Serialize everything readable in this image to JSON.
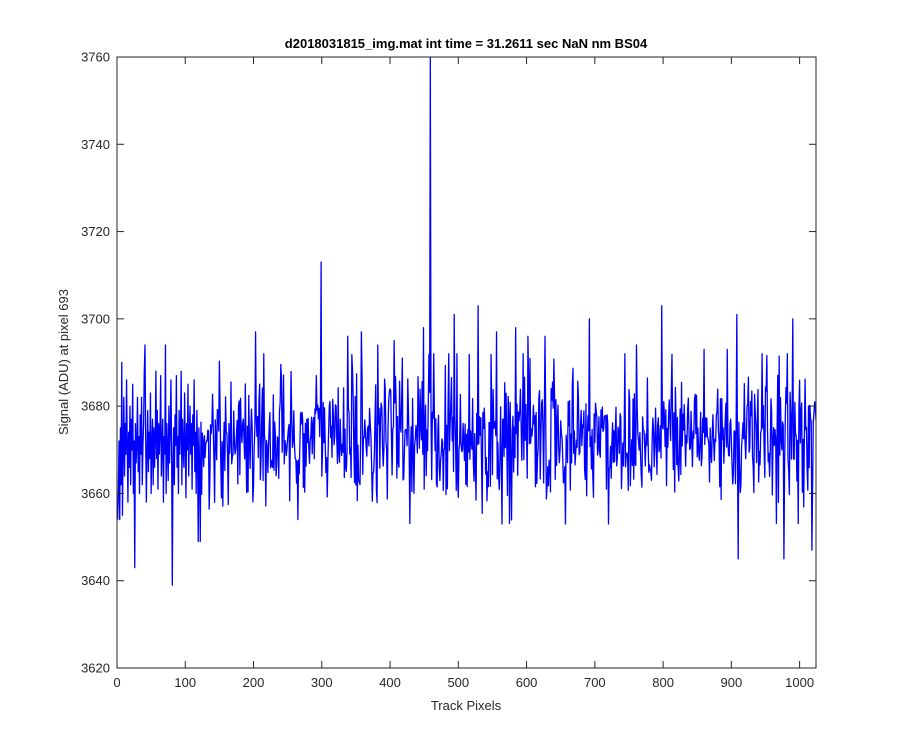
{
  "colors": {
    "series": "#0000ff",
    "axes": "#262626",
    "background": "#ffffff"
  },
  "chart_data": {
    "type": "line",
    "title": "d2018031815_img.mat int time = 31.2611 sec  NaN nm BS04",
    "xlabel": "Track Pixels",
    "ylabel": "Signal (ADU) at pixel 693",
    "xlim": [
      0,
      1024
    ],
    "ylim": [
      3620,
      3760
    ],
    "xticks": [
      0,
      100,
      200,
      300,
      400,
      500,
      600,
      700,
      800,
      900,
      1000
    ],
    "yticks": [
      3620,
      3640,
      3660,
      3680,
      3700,
      3720,
      3740,
      3760
    ],
    "grid": false,
    "legend": "none",
    "series": [
      {
        "color": "#0000ff",
        "noise": {
          "n_points": 1024,
          "x_start": 1,
          "x_step": 1,
          "mean": 3673,
          "std": 7.5
        },
        "values": [
          3668,
          3660,
          3672,
          3654,
          3675,
          3662,
          3690,
          3655,
          3670,
          3682,
          3664,
          3676,
          3669,
          3686,
          3671,
          3658,
          3674,
          3666,
          3680,
          3662,
          3677,
          3670,
          3685,
          3660,
          3672,
          3643,
          3676,
          3667,
          3671,
          3682,
          3665,
          3673,
          3660,
          3678,
          3669,
          3682,
          3662,
          3671,
          3676,
          3688,
          3667,
          3673,
          3658,
          3670,
          3679,
          3665,
          3674,
          3668,
          3683,
          3660,
          3671,
          3677,
          3662,
          3675,
          3666,
          3672,
          3684,
          3668,
          3679,
          3661,
          3676,
          3669,
          3674,
          3687,
          3664,
          3671,
          3677,
          3658,
          3673,
          3669,
          3694,
          3660,
          3676,
          3670,
          3663,
          3680,
          3667,
          3674,
          3686,
          3671,
          3639,
          3666,
          3675,
          3662,
          3678,
          3671,
          3687,
          3666,
          3673,
          3660,
          3679,
          3669,
          3674,
          3688,
          3662,
          3677,
          3670,
          3666,
          3683,
          3672,
          3659,
          3676,
          3670,
          3685,
          3664,
          3673,
          3680,
          3669,
          3676,
          3661,
          3678,
          3671,
          3686,
          3665,
          3674,
          3660,
          3679,
          3670,
          3649,
          3675
        ]
      }
    ],
    "spikes": [
      {
        "x": 1,
        "y": 3654
      },
      {
        "x": 7,
        "y": 3690
      },
      {
        "x": 26,
        "y": 3643
      },
      {
        "x": 41,
        "y": 3694
      },
      {
        "x": 57,
        "y": 3688
      },
      {
        "x": 71,
        "y": 3694
      },
      {
        "x": 81,
        "y": 3639
      },
      {
        "x": 122,
        "y": 3649
      },
      {
        "x": 203,
        "y": 3697
      },
      {
        "x": 265,
        "y": 3654
      },
      {
        "x": 299,
        "y": 3713
      },
      {
        "x": 338,
        "y": 3696
      },
      {
        "x": 358,
        "y": 3697
      },
      {
        "x": 382,
        "y": 3694
      },
      {
        "x": 406,
        "y": 3695
      },
      {
        "x": 449,
        "y": 3698
      },
      {
        "x": 459,
        "y": 3760
      },
      {
        "x": 464,
        "y": 3692
      },
      {
        "x": 494,
        "y": 3701
      },
      {
        "x": 529,
        "y": 3703
      },
      {
        "x": 556,
        "y": 3697
      },
      {
        "x": 564,
        "y": 3653
      },
      {
        "x": 584,
        "y": 3698
      },
      {
        "x": 602,
        "y": 3696
      },
      {
        "x": 627,
        "y": 3696
      },
      {
        "x": 657,
        "y": 3653
      },
      {
        "x": 692,
        "y": 3700
      },
      {
        "x": 720,
        "y": 3653
      },
      {
        "x": 761,
        "y": 3694
      },
      {
        "x": 798,
        "y": 3703
      },
      {
        "x": 860,
        "y": 3693
      },
      {
        "x": 894,
        "y": 3693
      },
      {
        "x": 908,
        "y": 3701
      },
      {
        "x": 910,
        "y": 3645
      },
      {
        "x": 945,
        "y": 3692
      },
      {
        "x": 977,
        "y": 3645
      },
      {
        "x": 990,
        "y": 3700
      },
      {
        "x": 1018,
        "y": 3647
      },
      {
        "x": 1022,
        "y": 3681
      }
    ]
  }
}
